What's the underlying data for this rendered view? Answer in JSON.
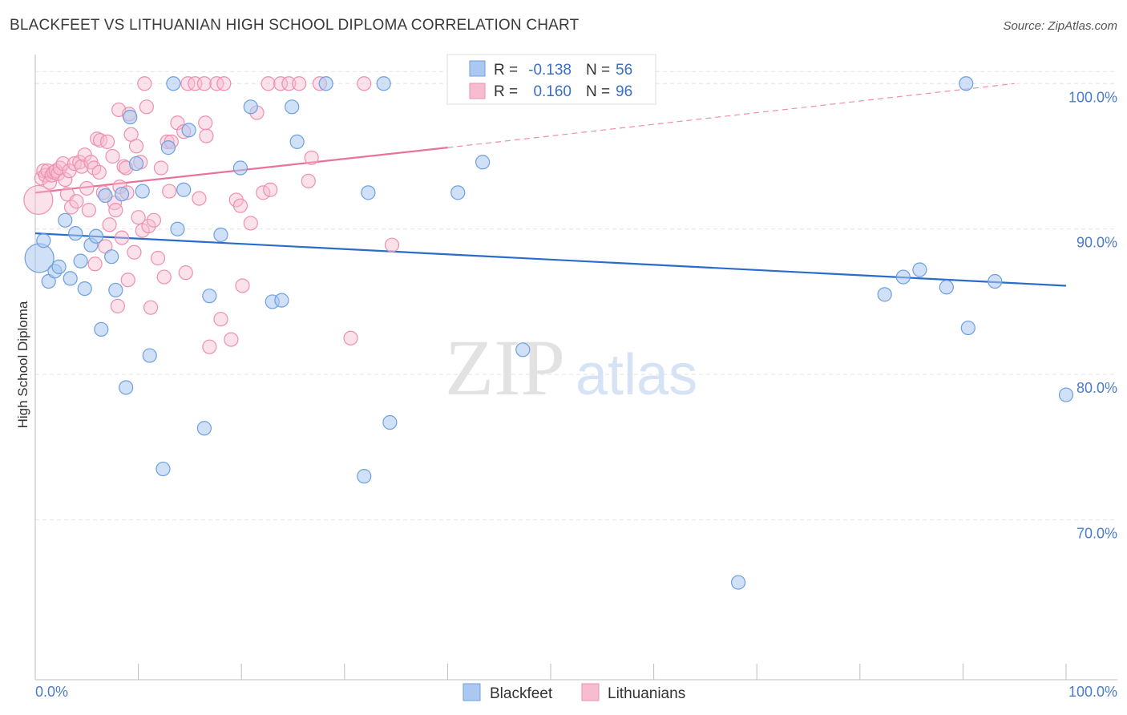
{
  "title": "BLACKFEET VS LITHUANIAN HIGH SCHOOL DIPLOMA CORRELATION CHART",
  "source": "Source: ZipAtlas.com",
  "watermark": {
    "zip": "ZIP",
    "atlas": "atlas"
  },
  "legend": {
    "r_label": "R =",
    "n_label": "N =",
    "rows": [
      {
        "series": "Blackfeet",
        "r": "-0.138",
        "n": "56"
      },
      {
        "series": "Lithuanians",
        "r": "0.160",
        "n": "96"
      }
    ]
  },
  "colors": {
    "blackfeet_fill": "#aac8f0",
    "blackfeet_stroke": "#6d9fe0",
    "blackfeet_line": "#2a6cc9",
    "lithuanian_fill": "#f6bcd0",
    "lithuanian_stroke": "#ee8fb0",
    "lithuanian_line": "#e8739a",
    "tick_label": "#4a7cc9"
  },
  "chart_data": {
    "type": "scatter",
    "xlabel": "",
    "ylabel": "High School Diploma",
    "xlim": [
      0,
      100
    ],
    "ylim": [
      60,
      102
    ],
    "x_tick_labels": [
      "0.0%",
      "100.0%"
    ],
    "y_ticks": [
      {
        "value": 100,
        "label": "100.0%"
      },
      {
        "value": 90,
        "label": "90.0%"
      },
      {
        "value": 80,
        "label": "80.0%"
      },
      {
        "value": 70,
        "label": "70.0%"
      }
    ],
    "grid": true,
    "legend_position": "top-center",
    "series": [
      {
        "name": "Blackfeet",
        "trend": {
          "x": [
            0,
            100
          ],
          "y": [
            89.7,
            86.1
          ],
          "dashed_extension": false
        },
        "points": [
          {
            "x": 0.4,
            "y": 88.0,
            "big": true
          },
          {
            "x": 0.8,
            "y": 89.2
          },
          {
            "x": 1.3,
            "y": 86.4
          },
          {
            "x": 1.9,
            "y": 87.1
          },
          {
            "x": 2.3,
            "y": 87.4
          },
          {
            "x": 2.9,
            "y": 90.6
          },
          {
            "x": 3.4,
            "y": 86.6
          },
          {
            "x": 3.9,
            "y": 89.7
          },
          {
            "x": 4.4,
            "y": 87.8
          },
          {
            "x": 4.8,
            "y": 85.9
          },
          {
            "x": 5.4,
            "y": 88.9
          },
          {
            "x": 5.9,
            "y": 89.5
          },
          {
            "x": 6.4,
            "y": 83.1
          },
          {
            "x": 6.8,
            "y": 92.3
          },
          {
            "x": 7.4,
            "y": 88.1
          },
          {
            "x": 7.8,
            "y": 85.8
          },
          {
            "x": 8.4,
            "y": 92.4
          },
          {
            "x": 8.8,
            "y": 79.1
          },
          {
            "x": 9.2,
            "y": 97.7
          },
          {
            "x": 9.8,
            "y": 94.5
          },
          {
            "x": 10.4,
            "y": 92.6
          },
          {
            "x": 11.1,
            "y": 81.3
          },
          {
            "x": 12.4,
            "y": 73.5
          },
          {
            "x": 12.9,
            "y": 95.6
          },
          {
            "x": 13.4,
            "y": 100.0
          },
          {
            "x": 13.8,
            "y": 90.0
          },
          {
            "x": 14.4,
            "y": 92.7
          },
          {
            "x": 14.9,
            "y": 96.8
          },
          {
            "x": 16.4,
            "y": 76.3
          },
          {
            "x": 16.9,
            "y": 85.4
          },
          {
            "x": 18.0,
            "y": 89.6
          },
          {
            "x": 19.9,
            "y": 94.2
          },
          {
            "x": 20.9,
            "y": 98.4
          },
          {
            "x": 23.0,
            "y": 85.0
          },
          {
            "x": 23.9,
            "y": 85.1
          },
          {
            "x": 24.9,
            "y": 98.4
          },
          {
            "x": 25.4,
            "y": 96.0
          },
          {
            "x": 28.2,
            "y": 100.0
          },
          {
            "x": 31.9,
            "y": 73.0
          },
          {
            "x": 32.3,
            "y": 92.5
          },
          {
            "x": 33.8,
            "y": 100.0
          },
          {
            "x": 34.4,
            "y": 76.7
          },
          {
            "x": 40.8,
            "y": 100.0
          },
          {
            "x": 41.0,
            "y": 92.5
          },
          {
            "x": 43.4,
            "y": 94.6
          },
          {
            "x": 47.3,
            "y": 81.7
          },
          {
            "x": 68.2,
            "y": 65.7
          },
          {
            "x": 82.4,
            "y": 85.5
          },
          {
            "x": 84.2,
            "y": 86.7
          },
          {
            "x": 85.8,
            "y": 87.2
          },
          {
            "x": 88.4,
            "y": 86.0
          },
          {
            "x": 90.3,
            "y": 100.0
          },
          {
            "x": 90.5,
            "y": 83.2
          },
          {
            "x": 93.1,
            "y": 86.4
          },
          {
            "x": 100.0,
            "y": 78.6
          }
        ]
      },
      {
        "name": "Lithuanians",
        "trend": {
          "x": [
            0,
            40
          ],
          "y": [
            92.5,
            95.6
          ],
          "dashed_extension": {
            "x": [
              40,
              95
            ],
            "y": [
              95.6,
              100.0
            ]
          }
        },
        "points": [
          {
            "x": 0.3,
            "y": 92.0,
            "big": true
          },
          {
            "x": 0.6,
            "y": 93.5
          },
          {
            "x": 0.8,
            "y": 94.0
          },
          {
            "x": 1.0,
            "y": 93.7
          },
          {
            "x": 1.2,
            "y": 94.0
          },
          {
            "x": 1.4,
            "y": 93.2
          },
          {
            "x": 1.6,
            "y": 93.7
          },
          {
            "x": 1.8,
            "y": 93.9
          },
          {
            "x": 2.0,
            "y": 94.0
          },
          {
            "x": 2.2,
            "y": 93.8
          },
          {
            "x": 2.4,
            "y": 94.2
          },
          {
            "x": 2.7,
            "y": 94.5
          },
          {
            "x": 2.9,
            "y": 93.4
          },
          {
            "x": 3.1,
            "y": 92.4
          },
          {
            "x": 3.3,
            "y": 94.0
          },
          {
            "x": 3.5,
            "y": 91.5
          },
          {
            "x": 3.8,
            "y": 94.5
          },
          {
            "x": 4.0,
            "y": 91.9
          },
          {
            "x": 4.3,
            "y": 94.6
          },
          {
            "x": 4.5,
            "y": 94.3
          },
          {
            "x": 4.8,
            "y": 95.1
          },
          {
            "x": 5.0,
            "y": 92.8
          },
          {
            "x": 5.2,
            "y": 91.3
          },
          {
            "x": 5.4,
            "y": 94.6
          },
          {
            "x": 5.7,
            "y": 94.2
          },
          {
            "x": 5.8,
            "y": 87.6
          },
          {
            "x": 6.0,
            "y": 96.2
          },
          {
            "x": 6.2,
            "y": 93.9
          },
          {
            "x": 6.3,
            "y": 96.1
          },
          {
            "x": 6.6,
            "y": 92.5
          },
          {
            "x": 6.8,
            "y": 88.8
          },
          {
            "x": 7.0,
            "y": 96.0
          },
          {
            "x": 7.2,
            "y": 90.3
          },
          {
            "x": 7.5,
            "y": 95.0
          },
          {
            "x": 7.7,
            "y": 91.8
          },
          {
            "x": 7.8,
            "y": 91.3
          },
          {
            "x": 8.0,
            "y": 84.7
          },
          {
            "x": 8.1,
            "y": 98.2
          },
          {
            "x": 8.2,
            "y": 92.9
          },
          {
            "x": 8.4,
            "y": 89.4
          },
          {
            "x": 8.6,
            "y": 94.3
          },
          {
            "x": 8.8,
            "y": 94.2
          },
          {
            "x": 8.9,
            "y": 92.5
          },
          {
            "x": 9.0,
            "y": 86.5
          },
          {
            "x": 9.1,
            "y": 97.9
          },
          {
            "x": 9.3,
            "y": 96.5
          },
          {
            "x": 9.6,
            "y": 88.4
          },
          {
            "x": 9.8,
            "y": 95.7
          },
          {
            "x": 10.0,
            "y": 90.8
          },
          {
            "x": 10.2,
            "y": 94.6
          },
          {
            "x": 10.4,
            "y": 89.9
          },
          {
            "x": 10.6,
            "y": 100.0
          },
          {
            "x": 10.8,
            "y": 98.4
          },
          {
            "x": 11.0,
            "y": 90.2
          },
          {
            "x": 11.2,
            "y": 84.6
          },
          {
            "x": 11.5,
            "y": 90.6
          },
          {
            "x": 11.9,
            "y": 88.0
          },
          {
            "x": 12.2,
            "y": 94.2
          },
          {
            "x": 12.5,
            "y": 86.7
          },
          {
            "x": 12.8,
            "y": 96.0
          },
          {
            "x": 13.0,
            "y": 92.6
          },
          {
            "x": 13.2,
            "y": 96.0
          },
          {
            "x": 13.8,
            "y": 97.3
          },
          {
            "x": 14.4,
            "y": 96.7
          },
          {
            "x": 14.6,
            "y": 87.0
          },
          {
            "x": 14.8,
            "y": 100.0
          },
          {
            "x": 15.5,
            "y": 100.0
          },
          {
            "x": 15.9,
            "y": 92.1
          },
          {
            "x": 16.4,
            "y": 100.0
          },
          {
            "x": 16.5,
            "y": 97.3
          },
          {
            "x": 16.6,
            "y": 96.4
          },
          {
            "x": 16.9,
            "y": 81.9
          },
          {
            "x": 17.6,
            "y": 100.0
          },
          {
            "x": 18.0,
            "y": 83.8
          },
          {
            "x": 18.3,
            "y": 100.0
          },
          {
            "x": 19.0,
            "y": 82.4
          },
          {
            "x": 19.5,
            "y": 92.0
          },
          {
            "x": 19.9,
            "y": 91.6
          },
          {
            "x": 20.1,
            "y": 86.1
          },
          {
            "x": 20.9,
            "y": 90.4
          },
          {
            "x": 21.5,
            "y": 98.0
          },
          {
            "x": 22.1,
            "y": 92.5
          },
          {
            "x": 22.6,
            "y": 100.0
          },
          {
            "x": 22.8,
            "y": 92.7
          },
          {
            "x": 23.8,
            "y": 100.0
          },
          {
            "x": 24.6,
            "y": 100.0
          },
          {
            "x": 25.6,
            "y": 100.0
          },
          {
            "x": 26.5,
            "y": 93.3
          },
          {
            "x": 26.8,
            "y": 94.9
          },
          {
            "x": 27.6,
            "y": 100.0
          },
          {
            "x": 30.6,
            "y": 82.5
          },
          {
            "x": 31.9,
            "y": 100.0
          },
          {
            "x": 34.6,
            "y": 88.9
          }
        ]
      }
    ]
  }
}
